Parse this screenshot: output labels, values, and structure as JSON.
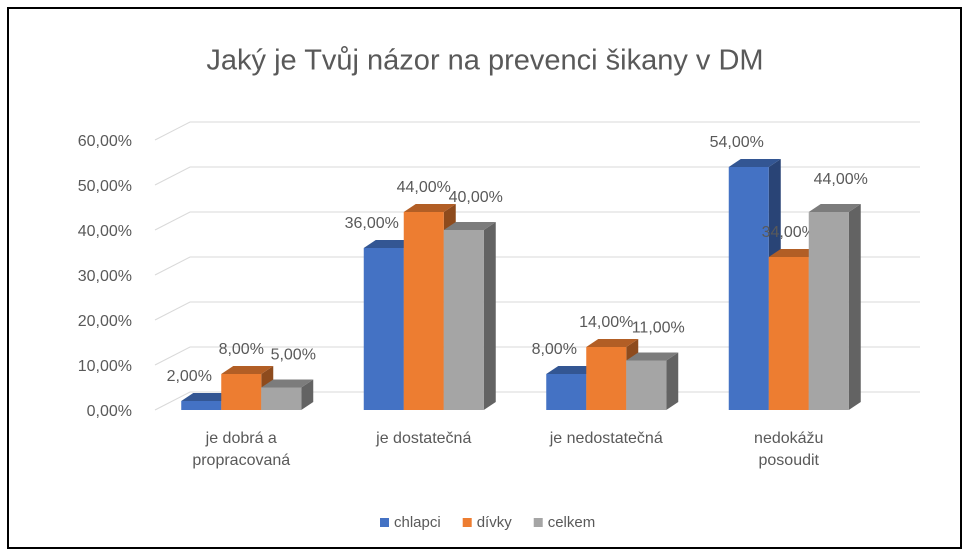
{
  "chart_data": {
    "type": "bar3d",
    "title": "Jaký je Tvůj názor na prevenci šikany v DM",
    "categories": [
      "je dobrá a propracovaná",
      "je dostatečná",
      "je nedostatečná",
      "nedokážu posoudit"
    ],
    "series": [
      {
        "name": "chlapci",
        "color": "#4472c4",
        "values": [
          2,
          36,
          8,
          54
        ],
        "value_labels": [
          "2,00%",
          "36,00%",
          "8,00%",
          "54,00%"
        ]
      },
      {
        "name": "dívky",
        "color": "#ed7d31",
        "values": [
          8,
          44,
          14,
          34
        ],
        "value_labels": [
          "8,00%",
          "44,00%",
          "14,00%",
          "34,00%"
        ]
      },
      {
        "name": "celkem",
        "color": "#a5a5a5",
        "values": [
          5,
          40,
          11,
          44
        ],
        "value_labels": [
          "5,00%",
          "40,00%",
          "11,00%",
          "44,00%"
        ]
      }
    ],
    "ylim": [
      0,
      60
    ],
    "yticks": [
      {
        "value": 0,
        "label": "0,00%"
      },
      {
        "value": 10,
        "label": "10,00%"
      },
      {
        "value": 20,
        "label": "20,00%"
      },
      {
        "value": 30,
        "label": "30,00%"
      },
      {
        "value": 40,
        "label": "40,00%"
      },
      {
        "value": 50,
        "label": "50,00%"
      },
      {
        "value": 60,
        "label": "60,00%"
      }
    ],
    "grid": true,
    "legend": "bottom"
  }
}
